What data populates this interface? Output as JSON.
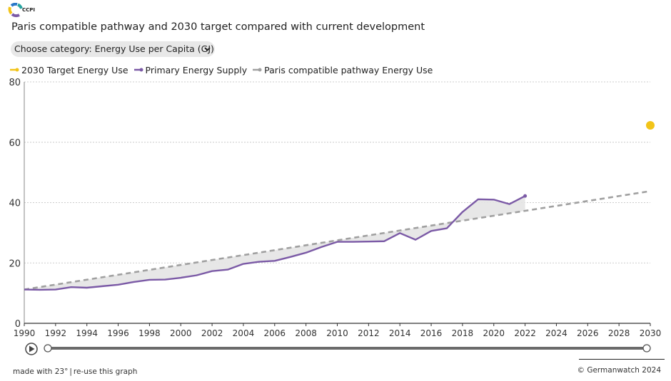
{
  "brand": {
    "logo_text": "CCPI"
  },
  "title": "Paris compatible pathway and 2030 target compared with current development",
  "category_select": {
    "label": "Choose category: Energy Use per Capita (GJ)",
    "chevron": "chevron-down-icon"
  },
  "legend": [
    {
      "label": "2030 Target Energy Use",
      "color": "#f2c419",
      "style": "dot"
    },
    {
      "label": "Primary Energy Supply",
      "color": "#7b5aa6",
      "style": "solid"
    },
    {
      "label": "Paris compatible pathway Energy Use",
      "color": "#a0a0a0",
      "style": "dashed"
    }
  ],
  "footer": {
    "made_with": "made with 23°",
    "reuse": "re-use this graph",
    "copyright": "©  Germanwatch 2024"
  },
  "colors": {
    "supply": "#7b5aa6",
    "pathway": "#a0a0a0",
    "target": "#f2c419",
    "gap_fill": "#e4e4e4",
    "grid": "#cccccc",
    "slider": "#6b6b6b"
  },
  "chart_data": {
    "type": "line",
    "xlim": [
      1990,
      2030
    ],
    "ylim": [
      0,
      80
    ],
    "y_ticks": [
      0,
      20,
      40,
      60,
      80
    ],
    "x_ticks": [
      1990,
      1992,
      1994,
      1996,
      1998,
      2000,
      2002,
      2004,
      2006,
      2008,
      2010,
      2012,
      2014,
      2016,
      2018,
      2020,
      2022,
      2024,
      2026,
      2028,
      2030
    ],
    "grid": true,
    "legend_position": "top-left",
    "series": [
      {
        "name": "Primary Energy Supply",
        "x": [
          1990,
          1991,
          1992,
          1993,
          1994,
          1995,
          1996,
          1997,
          1998,
          1999,
          2000,
          2001,
          2002,
          2003,
          2004,
          2005,
          2006,
          2007,
          2008,
          2009,
          2010,
          2011,
          2012,
          2013,
          2014,
          2015,
          2016,
          2017,
          2018,
          2019,
          2020,
          2021,
          2022
        ],
        "values": [
          11.2,
          11.1,
          11.2,
          12.0,
          11.8,
          12.3,
          12.8,
          13.7,
          14.4,
          14.5,
          15.1,
          15.9,
          17.3,
          17.8,
          19.7,
          20.4,
          20.7,
          22.0,
          23.4,
          25.3,
          27.0,
          27.0,
          27.1,
          27.2,
          29.9,
          27.7,
          30.6,
          31.5,
          36.9,
          41.1,
          41.0,
          39.5,
          42.2
        ]
      },
      {
        "name": "Paris compatible pathway Energy Use",
        "x": [
          1990,
          2030
        ],
        "values": [
          11.2,
          43.8
        ]
      },
      {
        "name": "2030 Target Energy Use",
        "x": [
          2030
        ],
        "values": [
          65.6
        ]
      }
    ]
  }
}
